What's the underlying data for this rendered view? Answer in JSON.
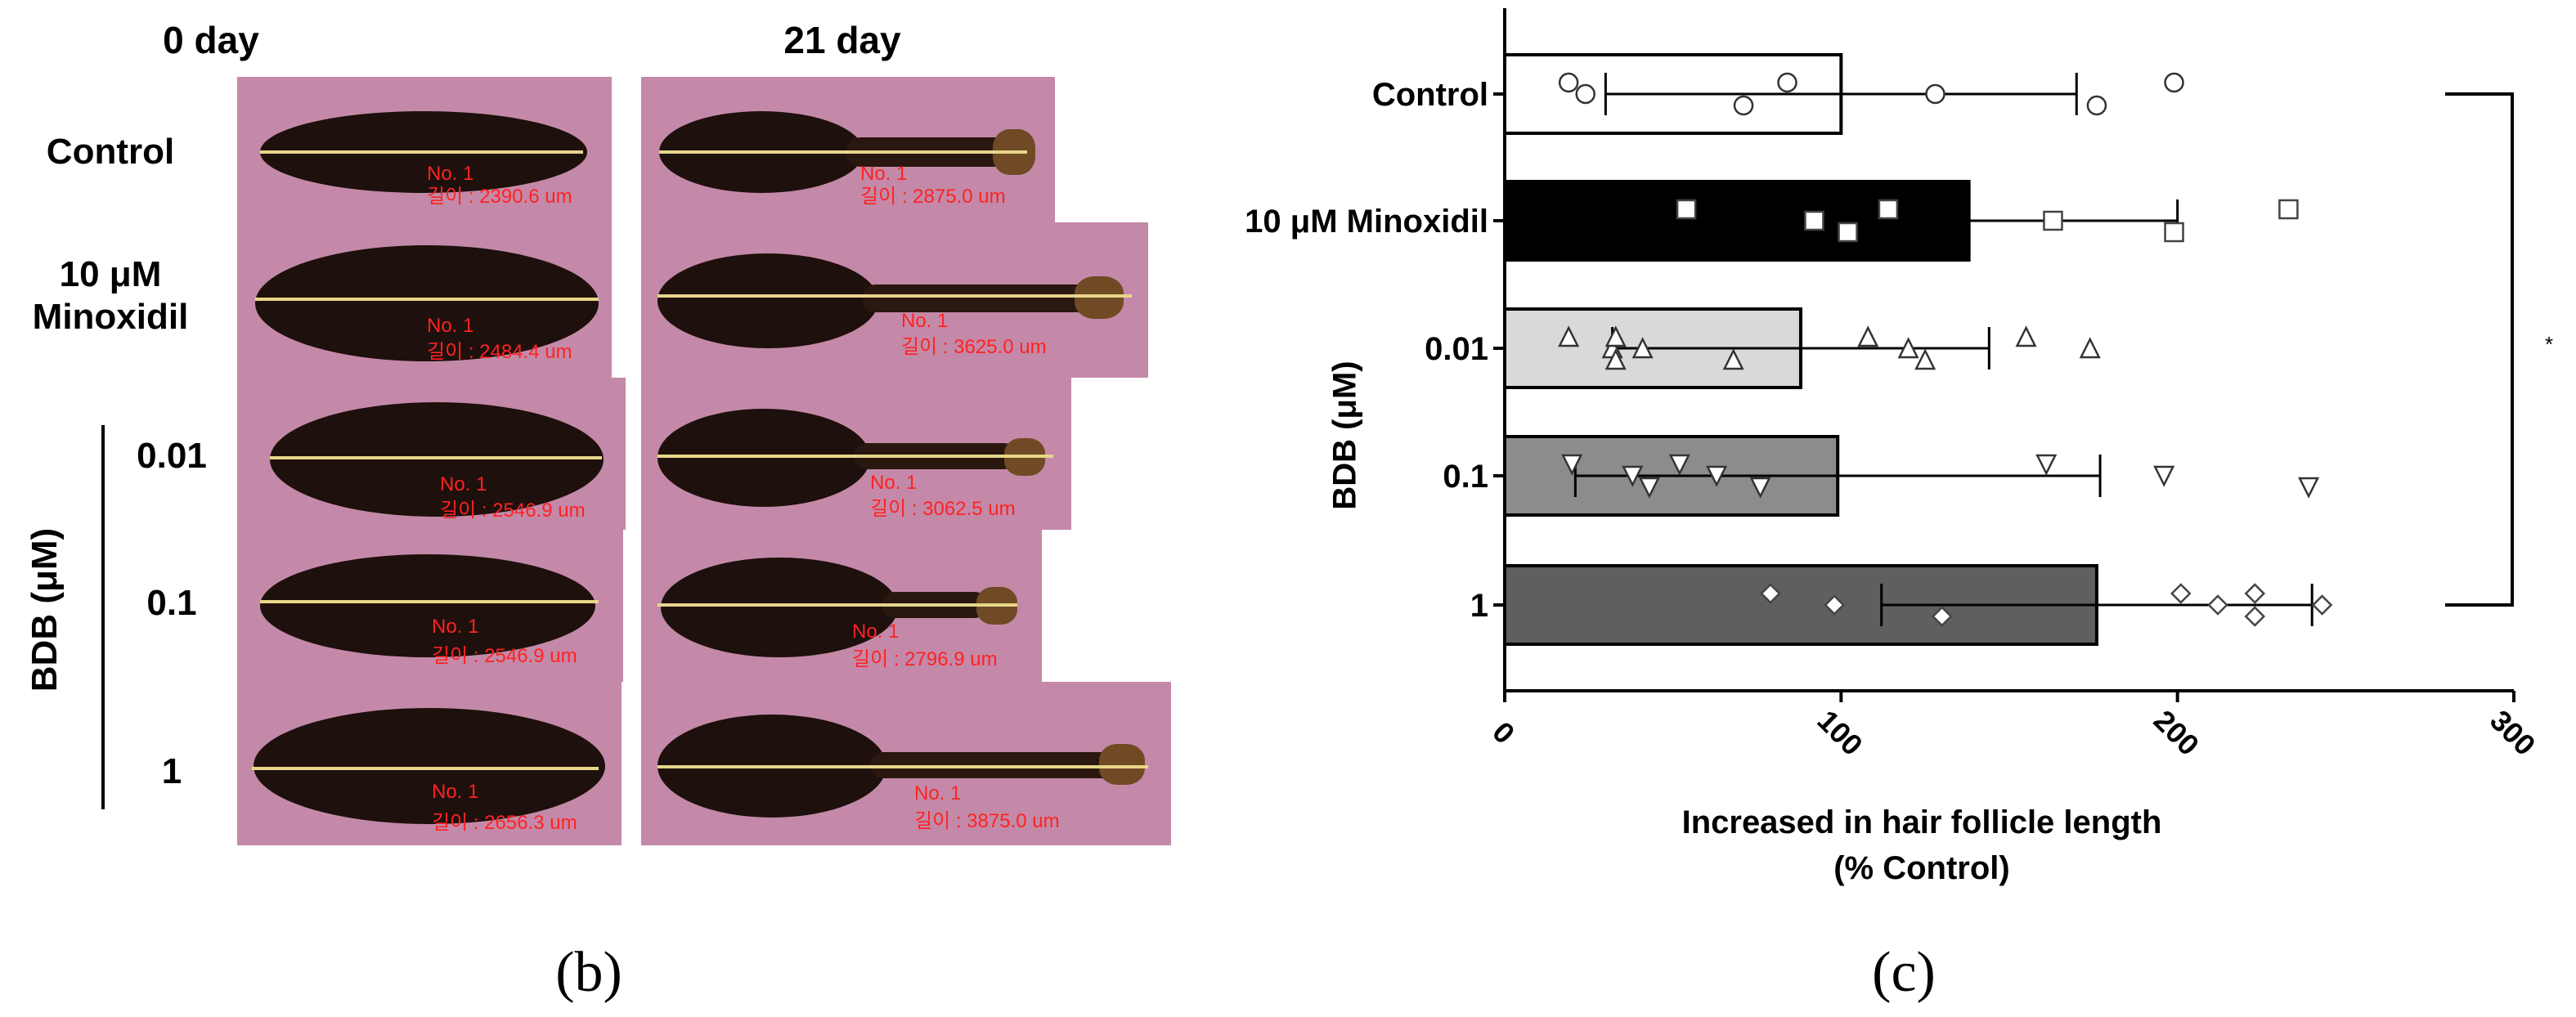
{
  "panel_b": {
    "label": "(b)",
    "column_titles": [
      "0 day",
      "21 day"
    ],
    "row_labels": [
      "Control",
      "10 μM\nMinoxidil",
      "0.01",
      "0.1",
      "1"
    ],
    "group_label": "BDB (μM)",
    "tiles": [
      {
        "no": "No. 1",
        "length": "길이 : 2390.6 um"
      },
      {
        "no": "No. 1",
        "length": "길이 : 2875.0 um"
      },
      {
        "no": "No. 1",
        "length": "길이 : 2484.4 um"
      },
      {
        "no": "No. 1",
        "length": "길이 : 3625.0 um"
      },
      {
        "no": "No. 1",
        "length": "길이 : 2546.9 um"
      },
      {
        "no": "No. 1",
        "length": "길이 : 3062.5 um"
      },
      {
        "no": "No. 1",
        "length": "길이 : 2546.9 um"
      },
      {
        "no": "No. 1",
        "length": "길이 : 2796.9 um"
      },
      {
        "no": "No. 1",
        "length": "길이 : 2656.3 um"
      },
      {
        "no": "No. 1",
        "length": "길이 : 3875.0 um"
      }
    ]
  },
  "panel_c": {
    "label": "(c)",
    "significance": "*",
    "chart_data": {
      "type": "bar",
      "orientation": "horizontal",
      "categories": [
        "Control",
        "10 μM Minoxidil",
        "0.01",
        "0.1",
        "1"
      ],
      "group_label": "BDB (μM)",
      "values": [
        100,
        138,
        88,
        99,
        176
      ],
      "error": [
        70,
        62,
        56,
        78,
        64
      ],
      "points": [
        [
          19,
          24,
          71,
          84,
          128,
          176,
          199
        ],
        [
          54,
          92,
          102,
          114,
          163,
          199,
          233
        ],
        [
          19,
          32,
          33,
          33,
          41,
          68,
          108,
          120,
          125,
          155,
          174
        ],
        [
          20,
          38,
          43,
          52,
          63,
          76,
          161,
          196,
          239
        ],
        [
          79,
          98,
          130,
          201,
          212,
          223,
          223,
          243
        ]
      ],
      "bar_colors": [
        "#ffffff",
        "#000000",
        "#d9d9d9",
        "#8c8c8c",
        "#5f5f5f"
      ],
      "marker_shapes": [
        "circle",
        "square",
        "triangle-up",
        "triangle-down",
        "diamond"
      ],
      "xlabel": "Increased  in hair follicle length\n(% Control)",
      "ylabel": "BDB (μM)",
      "xlim": [
        0,
        300
      ],
      "xticks": [
        "0",
        "100",
        "200",
        "300"
      ]
    }
  }
}
